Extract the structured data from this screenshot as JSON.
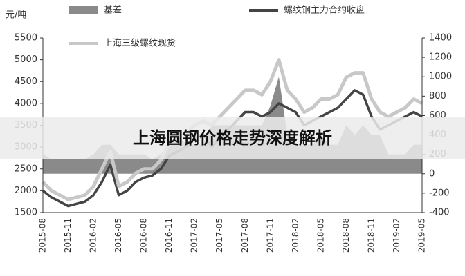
{
  "chart_data": {
    "type": "line",
    "overlay_title": "上海圆钢价格走势深度解析",
    "y_label": "元/吨",
    "categories": [
      "2015-08",
      null,
      null,
      "2015-11",
      null,
      null,
      "2016-02",
      null,
      null,
      "2016-05",
      null,
      null,
      "2016-08",
      null,
      null,
      "2016-11",
      null,
      null,
      "2017-02",
      null,
      null,
      "2017-05",
      null,
      null,
      "2017-08",
      null,
      null,
      "2017-11",
      null,
      null,
      "2018-02",
      null,
      null,
      "2018-05",
      null,
      null,
      "2018-08",
      null,
      null,
      "2018-11",
      null,
      null,
      "2019-02",
      null,
      null,
      "2019-05"
    ],
    "series": [
      {
        "name": "基差",
        "color": "#8a8a8a",
        "style": "area",
        "axis": "y2",
        "values": [
          200,
          150,
          150,
          150,
          150,
          150,
          200,
          300,
          300,
          200,
          200,
          200,
          200,
          150,
          200,
          300,
          400,
          300,
          300,
          300,
          500,
          500,
          500,
          500,
          500,
          500,
          500,
          700,
          1000,
          400,
          300,
          300,
          300,
          400,
          300,
          300,
          500,
          400,
          500,
          400,
          400,
          200,
          200,
          200,
          300,
          300
        ]
      },
      {
        "name": "螺纹钢主力合约收盘",
        "color": "#444444",
        "style": "line",
        "values": [
          2000,
          1850,
          1750,
          1650,
          1700,
          1750,
          1900,
          2200,
          2600,
          1900,
          2000,
          2200,
          2300,
          2350,
          2500,
          2800,
          2900,
          3000,
          3200,
          3300,
          3000,
          3200,
          3400,
          3600,
          3800,
          3800,
          3700,
          3800,
          4000,
          3900,
          3800,
          3500,
          3600,
          3700,
          3800,
          3900,
          4100,
          4300,
          4200,
          3700,
          3400,
          3500,
          3600,
          3700,
          3800,
          3700
        ]
      },
      {
        "name": "上海三级螺纹现货",
        "color": "#c8c8c8",
        "style": "line",
        "values": [
          2200,
          2000,
          1900,
          1800,
          1850,
          1900,
          2100,
          2500,
          2900,
          2100,
          2200,
          2400,
          2500,
          2500,
          2700,
          3100,
          3300,
          3300,
          3500,
          3600,
          3500,
          3700,
          3900,
          4100,
          4300,
          4300,
          4200,
          4500,
          5000,
          4300,
          4100,
          3800,
          3900,
          4100,
          4100,
          4200,
          4600,
          4700,
          4700,
          4100,
          3800,
          3700,
          3800,
          3900,
          4100,
          4000
        ]
      }
    ],
    "ylim": [
      1500,
      5500
    ],
    "yticks": [
      1500,
      2000,
      2500,
      3000,
      3500,
      4000,
      4500,
      5000,
      5500
    ],
    "y2lim": [
      -400,
      1400
    ],
    "y2ticks": [
      -400,
      -200,
      0,
      200,
      400,
      600,
      800,
      1000,
      1200,
      1400
    ]
  }
}
